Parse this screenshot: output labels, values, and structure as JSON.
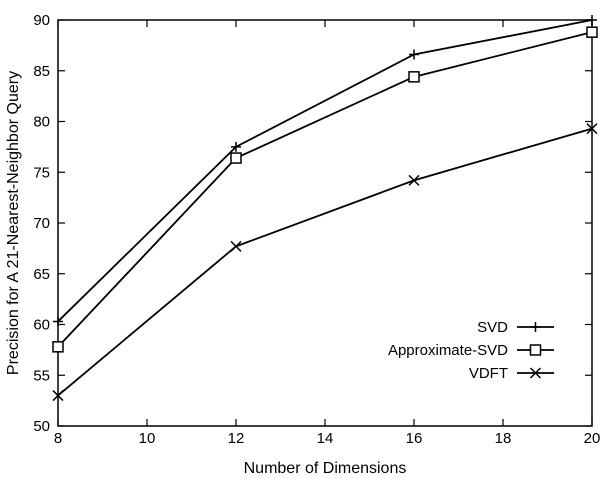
{
  "chart_data": {
    "type": "line",
    "title": "",
    "xlabel": "Number of Dimensions",
    "ylabel": "Precision for A 21-Nearest-Neighbor Query",
    "xlim": [
      8,
      20
    ],
    "ylim": [
      50,
      90
    ],
    "xticks": [
      8,
      10,
      12,
      14,
      16,
      18,
      20
    ],
    "yticks": [
      50,
      55,
      60,
      65,
      70,
      75,
      80,
      85,
      90
    ],
    "grid": false,
    "legend_position": "bottom-right",
    "x": [
      8,
      12,
      16,
      20
    ],
    "series": [
      {
        "name": "SVD",
        "marker": "plus",
        "values": [
          60.3,
          77.5,
          86.6,
          90.0
        ]
      },
      {
        "name": "Approximate-SVD",
        "marker": "square",
        "values": [
          57.8,
          76.4,
          84.4,
          88.8
        ]
      },
      {
        "name": "VDFT",
        "marker": "cross",
        "values": [
          53.0,
          67.7,
          74.2,
          79.3
        ]
      }
    ]
  }
}
